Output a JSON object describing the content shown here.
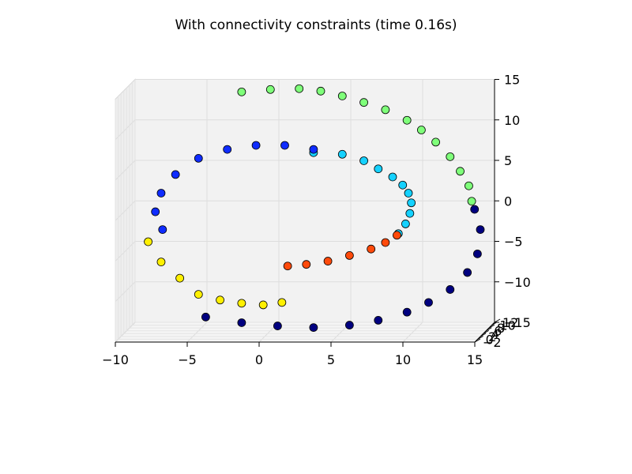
{
  "chart_data": {
    "type": "scatter",
    "title": "With connectivity constraints (time 0.16s)",
    "xlabel": "",
    "ylabel": "",
    "zlabel": "",
    "xlim": [
      -10,
      15
    ],
    "ylim": [
      -2,
      12
    ],
    "zlim": [
      -15,
      15
    ],
    "x_ticks": [
      "−10",
      "−5",
      "0",
      "5",
      "10",
      "15"
    ],
    "y_ticks": [
      "−2",
      "0",
      "2",
      "4",
      "6",
      "8",
      "10",
      "12"
    ],
    "z_ticks": [
      "−15",
      "−10",
      "−5",
      "0",
      "5",
      "10",
      "15"
    ],
    "grid": true,
    "projection": "3d",
    "series_colors": {
      "cluster_navy": "#00007f",
      "cluster_blue": "#0f2cff",
      "cluster_cyan": "#15d1ff",
      "cluster_green": "#7fff7a",
      "cluster_red": "#ff4a0b",
      "cluster_yellow": "#fff000"
    },
    "series": [
      {
        "id": "cluster_green",
        "points": [
          [
            -2.0,
            6.0,
            14.5
          ],
          [
            0.0,
            6.0,
            14.8
          ],
          [
            2.0,
            6.0,
            14.9
          ],
          [
            3.5,
            6.0,
            14.6
          ],
          [
            5.0,
            6.0,
            14.0
          ],
          [
            6.5,
            6.0,
            13.2
          ],
          [
            8.0,
            6.0,
            12.3
          ],
          [
            9.5,
            6.0,
            11.0
          ],
          [
            10.5,
            6.0,
            9.8
          ],
          [
            11.5,
            6.0,
            8.3
          ],
          [
            12.5,
            6.0,
            6.5
          ],
          [
            13.2,
            6.0,
            4.7
          ],
          [
            13.8,
            6.0,
            2.9
          ],
          [
            14.0,
            6.0,
            1.0
          ]
        ]
      },
      {
        "id": "cluster_cyan",
        "points": [
          [
            3.0,
            6.0,
            7.0
          ],
          [
            5.0,
            6.0,
            6.8
          ],
          [
            6.5,
            6.0,
            6.0
          ],
          [
            7.5,
            6.0,
            5.0
          ],
          [
            8.5,
            6.0,
            4.0
          ],
          [
            9.2,
            6.0,
            3.0
          ],
          [
            9.6,
            6.0,
            2.0
          ],
          [
            9.8,
            6.0,
            0.8
          ],
          [
            9.7,
            6.0,
            -0.5
          ],
          [
            9.4,
            6.0,
            -1.8
          ],
          [
            8.9,
            6.0,
            -3.0
          ]
        ]
      },
      {
        "id": "cluster_blue",
        "points": [
          [
            -7.5,
            6.0,
            -2.5
          ],
          [
            -8.0,
            6.0,
            -0.3
          ],
          [
            -7.6,
            6.0,
            2.0
          ],
          [
            -6.6,
            6.0,
            4.3
          ],
          [
            -5.0,
            6.0,
            6.3
          ],
          [
            -3.0,
            6.0,
            7.4
          ],
          [
            -1.0,
            6.0,
            7.9
          ],
          [
            1.0,
            6.0,
            7.9
          ],
          [
            3.0,
            6.0,
            7.4
          ]
        ]
      },
      {
        "id": "cluster_red",
        "points": [
          [
            1.2,
            6.0,
            -7.0
          ],
          [
            2.5,
            6.0,
            -6.8
          ],
          [
            4.0,
            6.0,
            -6.4
          ],
          [
            5.5,
            6.0,
            -5.7
          ],
          [
            7.0,
            6.0,
            -4.9
          ],
          [
            8.0,
            6.0,
            -4.1
          ],
          [
            8.8,
            6.0,
            -3.2
          ]
        ]
      },
      {
        "id": "cluster_yellow",
        "points": [
          [
            -8.5,
            6.0,
            -4.0
          ],
          [
            -7.6,
            6.0,
            -6.5
          ],
          [
            -6.3,
            6.0,
            -8.5
          ],
          [
            -5.0,
            6.0,
            -10.5
          ],
          [
            -3.5,
            6.0,
            -11.2
          ],
          [
            -2.0,
            6.0,
            -11.6
          ],
          [
            -0.5,
            6.0,
            -11.8
          ],
          [
            0.8,
            6.0,
            -11.5
          ]
        ]
      },
      {
        "id": "cluster_navy",
        "points": [
          [
            -4.5,
            6.0,
            -13.3
          ],
          [
            -2.0,
            6.0,
            -14.0
          ],
          [
            0.5,
            6.0,
            -14.4
          ],
          [
            3.0,
            6.0,
            -14.6
          ],
          [
            5.5,
            6.0,
            -14.3
          ],
          [
            7.5,
            6.0,
            -13.7
          ],
          [
            9.5,
            6.0,
            -12.7
          ],
          [
            11.0,
            6.0,
            -11.5
          ],
          [
            12.5,
            6.0,
            -9.9
          ],
          [
            13.7,
            6.0,
            -7.8
          ],
          [
            14.4,
            6.0,
            -5.5
          ],
          [
            14.6,
            6.0,
            -2.5
          ],
          [
            14.2,
            6.0,
            0.0
          ]
        ]
      }
    ]
  }
}
